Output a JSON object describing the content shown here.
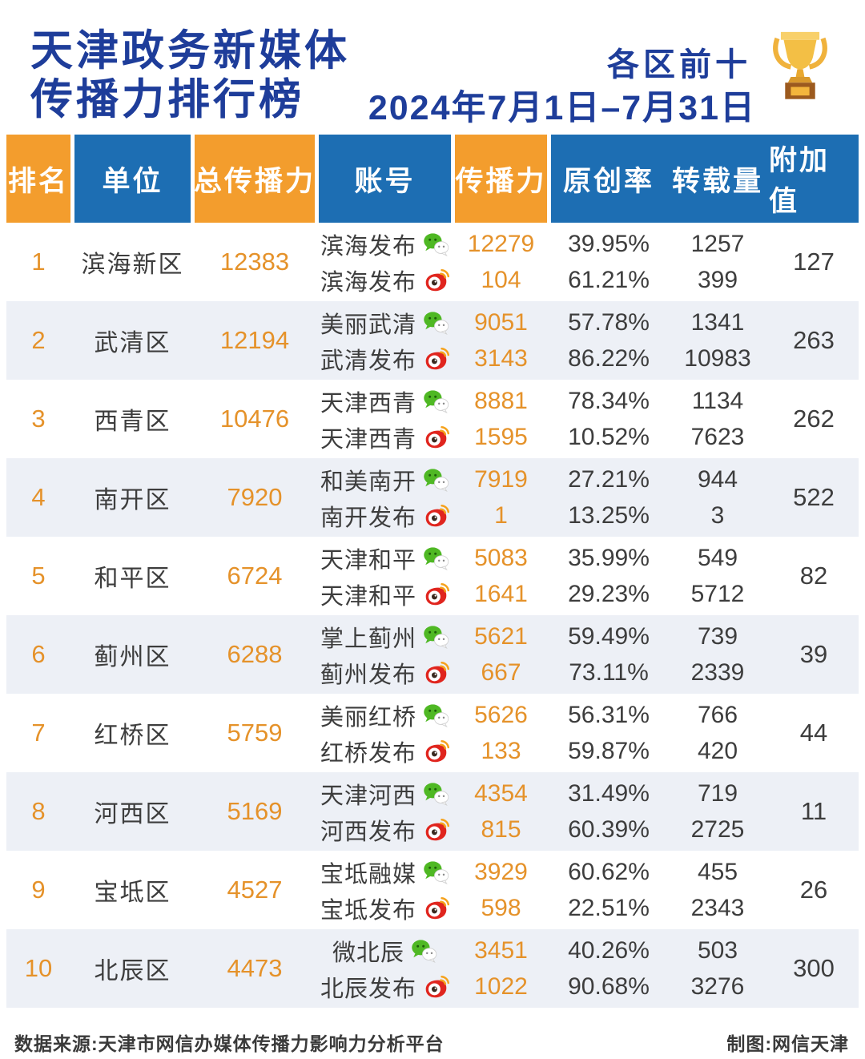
{
  "header": {
    "title_line1": "天津政务新媒体",
    "title_line2": "传播力排行榜",
    "scope_label": "各区前十",
    "date_range": "2024年7月1日–7月31日"
  },
  "colors": {
    "title_navy": "#1e3d9a",
    "header_orange": "#f39d2d",
    "header_blue": "#1d6eb3",
    "value_orange": "#e5922a",
    "row_alt_background": "#edf0f6"
  },
  "chart_data": {
    "type": "table",
    "title": "天津政务新媒体传播力排行榜",
    "subtitle": "各区前十",
    "period": "2024年7月1日–7月31日",
    "columns": {
      "rank": "排名",
      "unit": "单位",
      "total": "总传播力",
      "account": "账号",
      "power": "传播力",
      "original": "原创率",
      "repost": "转载量",
      "addon": "附加值"
    },
    "rows": [
      {
        "rank": 1,
        "unit": "滨海新区",
        "total": 12383,
        "addon": 127,
        "accounts": [
          {
            "name": "滨海发布",
            "platform": "wechat",
            "power": 12279,
            "original": "39.95%",
            "repost": 1257
          },
          {
            "name": "滨海发布",
            "platform": "weibo",
            "power": 104,
            "original": "61.21%",
            "repost": 399
          }
        ]
      },
      {
        "rank": 2,
        "unit": "武清区",
        "total": 12194,
        "addon": 263,
        "accounts": [
          {
            "name": "美丽武清",
            "platform": "wechat",
            "power": 9051,
            "original": "57.78%",
            "repost": 1341
          },
          {
            "name": "武清发布",
            "platform": "weibo",
            "power": 3143,
            "original": "86.22%",
            "repost": 10983
          }
        ]
      },
      {
        "rank": 3,
        "unit": "西青区",
        "total": 10476,
        "addon": 262,
        "accounts": [
          {
            "name": "天津西青",
            "platform": "wechat",
            "power": 8881,
            "original": "78.34%",
            "repost": 1134
          },
          {
            "name": "天津西青",
            "platform": "weibo",
            "power": 1595,
            "original": "10.52%",
            "repost": 7623
          }
        ]
      },
      {
        "rank": 4,
        "unit": "南开区",
        "total": 7920,
        "addon": 522,
        "accounts": [
          {
            "name": "和美南开",
            "platform": "wechat",
            "power": 7919,
            "original": "27.21%",
            "repost": 944
          },
          {
            "name": "南开发布",
            "platform": "weibo",
            "power": 1,
            "original": "13.25%",
            "repost": 3
          }
        ]
      },
      {
        "rank": 5,
        "unit": "和平区",
        "total": 6724,
        "addon": 82,
        "accounts": [
          {
            "name": "天津和平",
            "platform": "wechat",
            "power": 5083,
            "original": "35.99%",
            "repost": 549
          },
          {
            "name": "天津和平",
            "platform": "weibo",
            "power": 1641,
            "original": "29.23%",
            "repost": 5712
          }
        ]
      },
      {
        "rank": 6,
        "unit": "蓟州区",
        "total": 6288,
        "addon": 39,
        "accounts": [
          {
            "name": "掌上蓟州",
            "platform": "wechat",
            "power": 5621,
            "original": "59.49%",
            "repost": 739
          },
          {
            "name": "蓟州发布",
            "platform": "weibo",
            "power": 667,
            "original": "73.11%",
            "repost": 2339
          }
        ]
      },
      {
        "rank": 7,
        "unit": "红桥区",
        "total": 5759,
        "addon": 44,
        "accounts": [
          {
            "name": "美丽红桥",
            "platform": "wechat",
            "power": 5626,
            "original": "56.31%",
            "repost": 766
          },
          {
            "name": "红桥发布",
            "platform": "weibo",
            "power": 133,
            "original": "59.87%",
            "repost": 420
          }
        ]
      },
      {
        "rank": 8,
        "unit": "河西区",
        "total": 5169,
        "addon": 11,
        "accounts": [
          {
            "name": "天津河西",
            "platform": "wechat",
            "power": 4354,
            "original": "31.49%",
            "repost": 719
          },
          {
            "name": "河西发布",
            "platform": "weibo",
            "power": 815,
            "original": "60.39%",
            "repost": 2725
          }
        ]
      },
      {
        "rank": 9,
        "unit": "宝坻区",
        "total": 4527,
        "addon": 26,
        "accounts": [
          {
            "name": "宝坻融媒",
            "platform": "wechat",
            "power": 3929,
            "original": "60.62%",
            "repost": 455
          },
          {
            "name": "宝坻发布",
            "platform": "weibo",
            "power": 598,
            "original": "22.51%",
            "repost": 2343
          }
        ]
      },
      {
        "rank": 10,
        "unit": "北辰区",
        "total": 4473,
        "addon": 300,
        "accounts": [
          {
            "name": "微北辰",
            "platform": "wechat",
            "power": 3451,
            "original": "40.26%",
            "repost": 503
          },
          {
            "name": "北辰发布",
            "platform": "weibo",
            "power": 1022,
            "original": "90.68%",
            "repost": 3276
          }
        ]
      }
    ]
  },
  "footer": {
    "source": "数据来源:天津市网信办媒体传播力影响力分析平台",
    "credit": "制图:网信天津"
  }
}
